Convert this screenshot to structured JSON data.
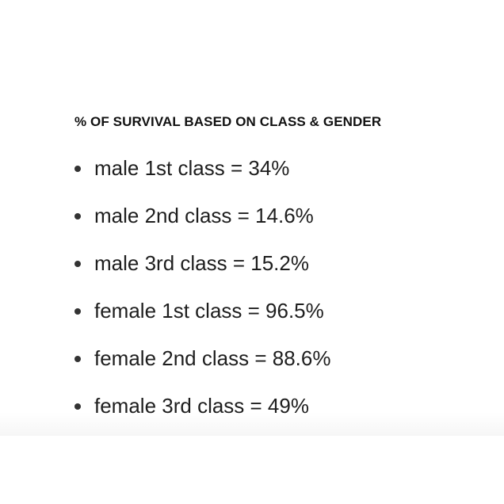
{
  "heading": "% OF SURVIVAL BASED ON CLASS & GENDER",
  "items": [
    {
      "label": "male 1st class = 34%"
    },
    {
      "label": "male 2nd class = 14.6%"
    },
    {
      "label": "male 3rd class = 15.2%"
    },
    {
      "label": "female 1st class = 96.5%"
    },
    {
      "label": "female 2nd class = 88.6%"
    },
    {
      "label": "female 3rd class = 49%"
    }
  ]
}
